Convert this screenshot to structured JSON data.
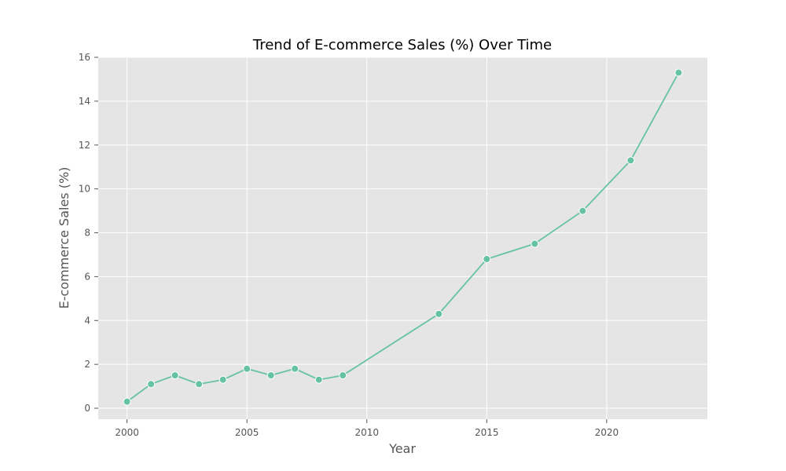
{
  "chart_data": {
    "type": "line",
    "title": "Trend of E-commerce Sales (%) Over Time",
    "xlabel": "Year",
    "ylabel": "E-commerce Sales (%)",
    "xlim": [
      1998.8,
      2024.2
    ],
    "ylim": [
      -0.5,
      16
    ],
    "xticks": [
      2000,
      2005,
      2010,
      2015,
      2020
    ],
    "yticks": [
      0,
      2,
      4,
      6,
      8,
      10,
      12,
      14,
      16
    ],
    "grid": true,
    "series": [
      {
        "color": "#66c2a5",
        "x": [
          2000,
          2001,
          2002,
          2003,
          2004,
          2005,
          2006,
          2007,
          2008,
          2009,
          2013,
          2015,
          2017,
          2019,
          2021,
          2023
        ],
        "y": [
          0.3,
          1.1,
          1.5,
          1.1,
          1.3,
          1.8,
          1.5,
          1.8,
          1.3,
          1.5,
          4.3,
          6.8,
          7.5,
          9.0,
          11.3,
          15.3
        ]
      }
    ],
    "colors": {
      "plot_background": "#e5e5e5",
      "grid": "#ffffff",
      "text": "#555555"
    }
  }
}
